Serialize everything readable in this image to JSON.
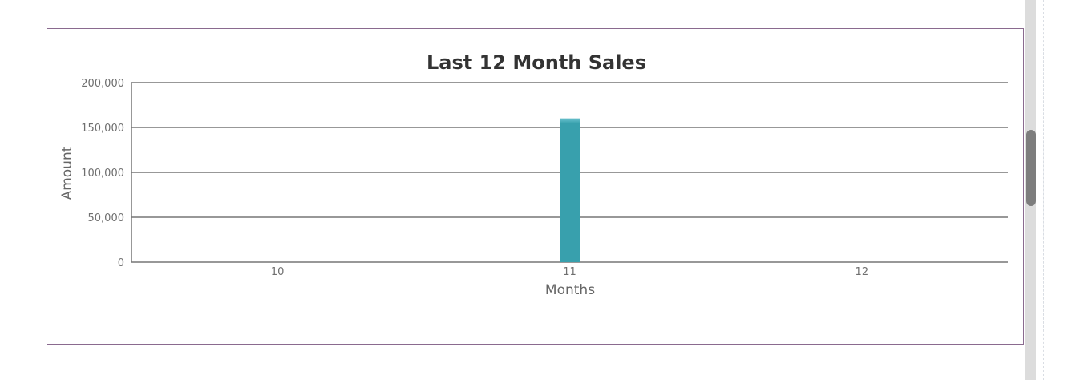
{
  "chart_data": {
    "type": "bar",
    "title": "Last 12 Month Sales",
    "xlabel": "Months",
    "ylabel": "Amount",
    "categories": [
      "10",
      "11",
      "12"
    ],
    "values": [
      0,
      160000,
      0
    ],
    "ylim": [
      0,
      200000
    ],
    "yticks": [
      "0",
      "50,000",
      "100,000",
      "150,000",
      "200,000"
    ],
    "ytick_values": [
      0,
      50000,
      100000,
      150000,
      200000
    ],
    "bar_color": "#38a0ad",
    "grid": true,
    "legend": "none"
  }
}
